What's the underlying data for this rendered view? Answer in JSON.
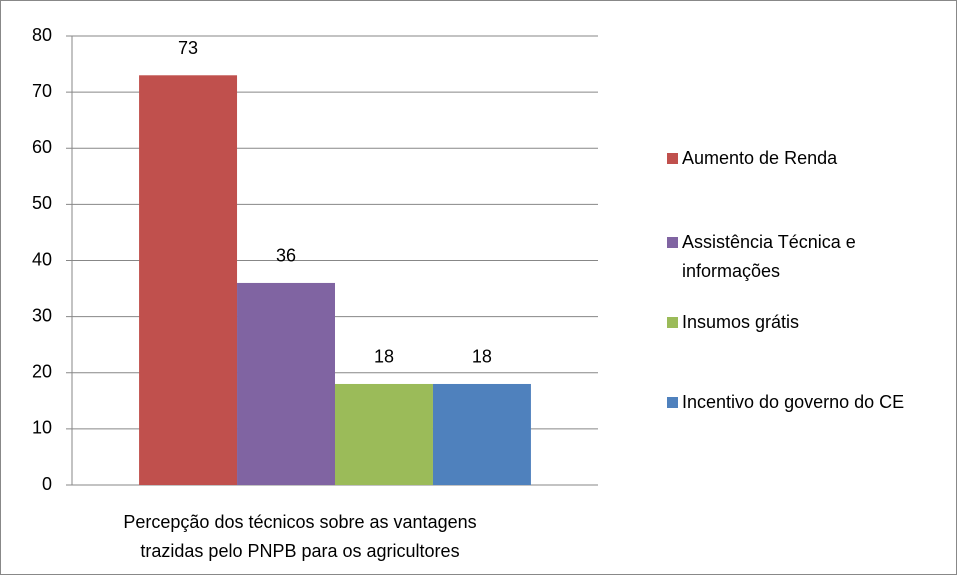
{
  "chart_data": {
    "type": "bar",
    "categories": [
      "Percepção dos técnicos sobre as vantagens trazidas pelo PNPB para os agricultores"
    ],
    "series": [
      {
        "name": "Aumento de Renda",
        "color": "#c0504d",
        "values": [
          73
        ]
      },
      {
        "name": "Assistência Técnica e informações",
        "color": "#8064a2",
        "values": [
          36
        ]
      },
      {
        "name": "Insumos grátis",
        "color": "#9bbb59",
        "values": [
          18
        ]
      },
      {
        "name": "Incentivo do governo do CE",
        "color": "#4f81bd",
        "values": [
          18
        ]
      }
    ],
    "ylim": [
      0,
      80
    ],
    "yticks": [
      0,
      10,
      20,
      30,
      40,
      50,
      60,
      70,
      80
    ],
    "grid": true,
    "legend": "right"
  }
}
